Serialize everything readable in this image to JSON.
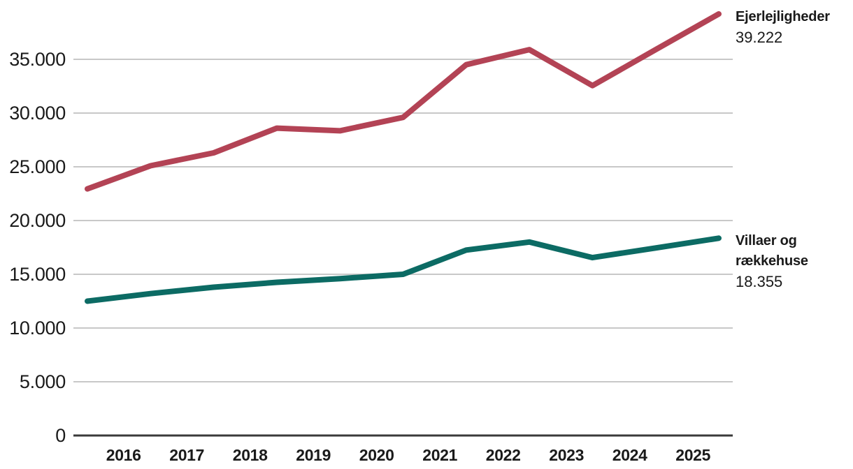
{
  "colors": {
    "background": "#ffffff",
    "grid": "#c8c8c8",
    "axis": "#3a3a3a",
    "text": "#1a1a1a",
    "series_red": "#b34355",
    "series_teal": "#0c6b64"
  },
  "chart_data": {
    "type": "line",
    "title": "",
    "xlabel": "",
    "ylabel": "",
    "ylim": [
      0,
      40500
    ],
    "grid": "horizontal gridlines, dark zero axis line",
    "legend_position": "direct labels at right end of each line",
    "y_ticks": [
      {
        "value": 0,
        "label": "0"
      },
      {
        "value": 5000,
        "label": "5.000"
      },
      {
        "value": 10000,
        "label": "10.000"
      },
      {
        "value": 15000,
        "label": "15.000"
      },
      {
        "value": 20000,
        "label": "20.000"
      },
      {
        "value": 25000,
        "label": "25.000"
      },
      {
        "value": 30000,
        "label": "30.000"
      },
      {
        "value": 35000,
        "label": "35.000"
      }
    ],
    "x_tick_labels": [
      "2016",
      "2017",
      "2018",
      "2019",
      "2020",
      "2021",
      "2022",
      "2023",
      "2024",
      "2025"
    ],
    "x_layout_note": "11 yearly data points per series; bold year labels are centered between successive data points",
    "series": [
      {
        "name": "Ejerlejligheder",
        "color": "#b34355",
        "end_label_name": "Ejerlejligheder",
        "end_label_value": "39.222",
        "values": [
          22950,
          25100,
          26300,
          28600,
          28350,
          29600,
          34500,
          35900,
          32550,
          35900,
          39222
        ]
      },
      {
        "name": "Villaer og rækkehuse",
        "color": "#0c6b64",
        "end_label_lines": [
          "Villaer og",
          "rækkehuse"
        ],
        "end_label_value": "18.355",
        "values": [
          12500,
          13200,
          13800,
          14250,
          14600,
          15000,
          17250,
          18000,
          16550,
          17450,
          18355
        ]
      }
    ]
  }
}
